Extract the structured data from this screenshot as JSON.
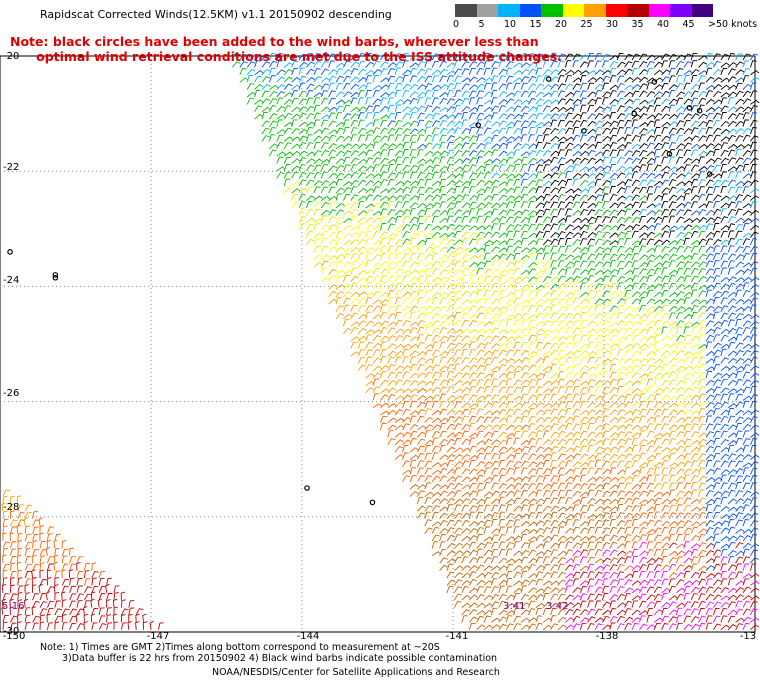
{
  "title": "Rapidscat Corrected Winds(12.5KM) v1.1 20150902 descending",
  "note_line1": "Note: black circles have been added to the wind barbs, wherever less than",
  "note_line2": "      optimal wind retrieval conditions are met due to the ISS attitude changes.",
  "legend": {
    "labels": [
      "0",
      "5",
      "10",
      "15",
      "20",
      "25",
      "30",
      "35",
      "40",
      "45",
      ">50 knots"
    ],
    "colors": [
      "#4a4a4a",
      "#a0a0a0",
      "#00b4ff",
      "#0050ff",
      "#00c000",
      "#ffff00",
      "#ffa000",
      "#ff0000",
      "#b40000",
      "#ff00ff",
      "#8000ff",
      "#400080"
    ]
  },
  "y_ticks": [
    "-20",
    "-22",
    "-24",
    "-26",
    "-28",
    "-30"
  ],
  "x_ticks": [
    "-150",
    "-147",
    "-144",
    "-141",
    "-138",
    "-13"
  ],
  "time_labels": [
    "5:16",
    "3:41",
    "3:42"
  ],
  "footnote_line1": "Note: 1) Times are GMT 2)Times along bottom correspond to measurement at ~20S",
  "footnote_line2": "3)Data buffer is 22 hrs from 20150902 4) Black wind barbs indicate possible contamination",
  "credit": "NOAA/NESDIS/Center for Satellite Applications and Research",
  "map": {
    "lon_range": [
      -150,
      -135
    ],
    "lat_range": [
      -30,
      -20
    ],
    "grid": true,
    "main_swath_corners": [
      [
        -145.5,
        -20
      ],
      [
        -135,
        -20
      ],
      [
        -135,
        -30
      ],
      [
        -140.8,
        -30
      ]
    ],
    "southwest_swath_corners": [
      [
        -150,
        -27.5
      ],
      [
        -150,
        -30
      ],
      [
        -146.8,
        -30
      ]
    ]
  }
}
